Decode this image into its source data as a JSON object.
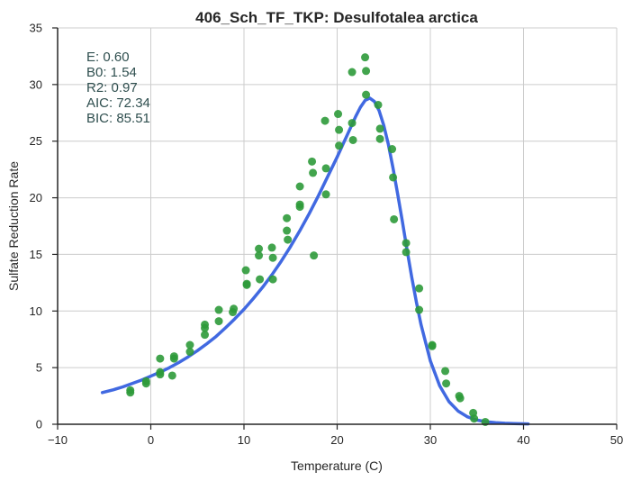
{
  "chart_data": {
    "type": "scatter",
    "title": "406_Sch_TF_TKP: Desulfotalea arctica",
    "xlabel": "Temperature (C)",
    "ylabel": "Sulfate Reduction Rate",
    "xlim": [
      -10,
      50
    ],
    "ylim": [
      0,
      35
    ],
    "xticks": [
      "−10",
      "0",
      "10",
      "20",
      "30",
      "40",
      "50"
    ],
    "xtick_values": [
      -10,
      0,
      10,
      20,
      30,
      40,
      50
    ],
    "yticks": [
      "0",
      "5",
      "10",
      "15",
      "20",
      "25",
      "30",
      "35"
    ],
    "ytick_values": [
      0,
      5,
      10,
      15,
      20,
      25,
      30,
      35
    ],
    "grid": true,
    "colors": {
      "points": "#2e9a3a",
      "fit_line": "#4169e1",
      "grid": "#cccccc",
      "axis": "#262626",
      "stats_text": "#2f4f4f"
    },
    "stats": [
      "E:  0.60",
      "B0:  1.54",
      "R2:  0.97",
      "AIC: 72.34",
      "BIC: 85.51"
    ],
    "stats_position": "top-left",
    "series": [
      {
        "kind": "points",
        "x": [
          -2.2,
          -2.2,
          -0.5,
          -0.5,
          1.0,
          1.0,
          1.0,
          2.3,
          2.5,
          2.5,
          4.2,
          4.2,
          5.8,
          5.8,
          5.8,
          7.3,
          7.3,
          8.8,
          8.9,
          10.2,
          10.3,
          10.3,
          11.6,
          11.6,
          11.7,
          13.0,
          13.1,
          13.1,
          14.6,
          14.6,
          14.7,
          16.0,
          16.0,
          16.0,
          17.3,
          17.4,
          17.5,
          18.7,
          18.8,
          18.8,
          20.1,
          20.2,
          20.2,
          21.6,
          21.6,
          21.7,
          23.0,
          23.1,
          23.1,
          24.4,
          24.6,
          24.6,
          25.9,
          26.0,
          26.1,
          27.4,
          27.4,
          28.8,
          28.8,
          30.2,
          30.2,
          31.6,
          31.7,
          33.1,
          33.2,
          34.6,
          34.7,
          35.9
        ],
        "y": [
          3.0,
          2.8,
          3.8,
          3.6,
          5.8,
          4.6,
          4.4,
          4.3,
          6.0,
          5.8,
          7.0,
          6.4,
          8.8,
          8.5,
          7.9,
          10.1,
          9.1,
          9.9,
          10.2,
          13.6,
          12.4,
          12.3,
          15.5,
          14.9,
          12.8,
          15.6,
          14.7,
          12.8,
          18.2,
          17.1,
          16.3,
          21.0,
          19.4,
          19.2,
          23.2,
          22.2,
          14.9,
          26.8,
          22.6,
          20.3,
          27.4,
          26.0,
          24.6,
          31.1,
          26.6,
          25.1,
          32.4,
          31.2,
          29.1,
          28.2,
          26.1,
          25.2,
          24.3,
          21.8,
          18.1,
          16.0,
          15.2,
          12.0,
          10.1,
          7.0,
          6.9,
          4.7,
          3.6,
          2.5,
          2.3,
          1.0,
          0.5,
          0.2
        ]
      },
      {
        "kind": "fit",
        "x": [
          -5.2,
          -4,
          -3,
          -2,
          -1,
          0,
          1,
          2,
          3,
          4,
          5,
          6,
          7,
          8,
          9,
          10,
          11,
          12,
          13,
          14,
          15,
          16,
          17,
          18,
          19,
          20,
          21,
          22,
          22.5,
          23,
          23.5,
          24,
          24.5,
          25,
          25.5,
          26,
          26.5,
          27,
          27.5,
          28,
          28.5,
          29,
          30,
          31,
          32,
          33,
          34,
          35,
          36,
          37,
          38,
          39,
          40,
          40.5
        ],
        "y": [
          2.8,
          3.05,
          3.3,
          3.6,
          3.9,
          4.25,
          4.6,
          5.0,
          5.45,
          5.95,
          6.5,
          7.1,
          7.75,
          8.5,
          9.3,
          10.15,
          11.1,
          12.1,
          13.2,
          14.4,
          15.7,
          17.1,
          18.6,
          20.2,
          21.9,
          23.6,
          25.4,
          27.2,
          28.0,
          28.6,
          28.8,
          28.5,
          27.7,
          26.4,
          24.7,
          22.6,
          20.3,
          17.9,
          15.4,
          13.0,
          10.8,
          8.8,
          5.6,
          3.4,
          2.0,
          1.15,
          0.65,
          0.37,
          0.22,
          0.14,
          0.09,
          0.06,
          0.04,
          0.03
        ]
      }
    ]
  }
}
